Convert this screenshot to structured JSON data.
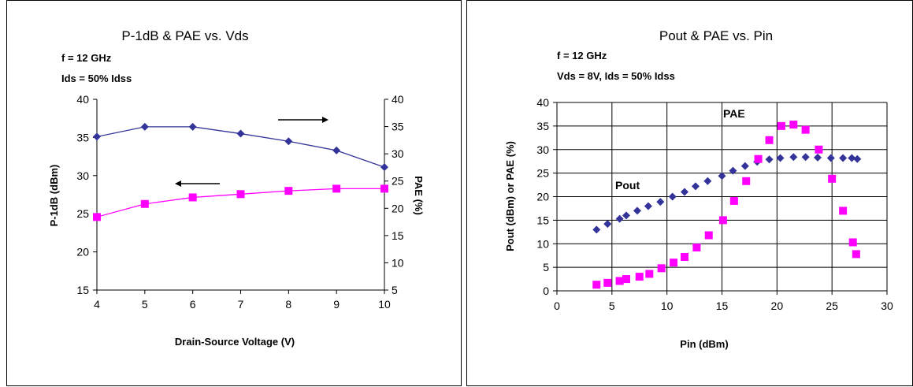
{
  "chart_data": [
    {
      "type": "line",
      "title": "P-1dB & PAE vs. Vds",
      "subtitle_lines": [
        "f = 12 GHz",
        "Ids = 50% Idss"
      ],
      "xlabel": "Drain-Source Voltage (V)",
      "ylabel": "P-1dB (dBm)",
      "y2label": "PAE (%)",
      "xlim": [
        4,
        10
      ],
      "ylim": [
        15,
        40
      ],
      "y2lim": [
        5,
        40
      ],
      "x_ticks": [
        4,
        5,
        6,
        7,
        8,
        9,
        10
      ],
      "y_ticks": [
        15,
        20,
        25,
        30,
        35,
        40
      ],
      "y2_ticks": [
        5,
        10,
        15,
        20,
        25,
        30,
        35,
        40
      ],
      "grid": false,
      "series": [
        {
          "axis": "left",
          "color": "#333399",
          "marker": "diamond",
          "x": [
            4,
            5,
            6,
            7,
            8,
            9,
            10
          ],
          "values": [
            35.1,
            36.4,
            36.4,
            35.5,
            34.5,
            33.3,
            31.1
          ]
        },
        {
          "axis": "right",
          "color": "#ff00ff",
          "marker": "square",
          "x": [
            4,
            5,
            6,
            7,
            8,
            9,
            10
          ],
          "values": [
            18.4,
            20.8,
            22.0,
            22.6,
            23.2,
            23.6,
            23.6
          ]
        }
      ]
    },
    {
      "type": "scatter",
      "title": "Pout & PAE vs. Pin",
      "subtitle_lines": [
        "f = 12 GHz",
        "Vds = 8V, Ids = 50% Idss"
      ],
      "xlabel": "Pin (dBm)",
      "ylabel": "Pout (dBm) or PAE (%)",
      "xlim": [
        0,
        30
      ],
      "ylim": [
        0,
        40
      ],
      "x_ticks": [
        0,
        5,
        10,
        15,
        20,
        25,
        30
      ],
      "y_ticks": [
        0,
        5,
        10,
        15,
        20,
        25,
        30,
        35,
        40
      ],
      "grid": true,
      "annotations": [
        "Pout",
        "PAE"
      ],
      "series": [
        {
          "name": "Pout",
          "color": "#333399",
          "marker": "diamond",
          "x": [
            3.6,
            4.6,
            5.7,
            6.3,
            7.3,
            8.3,
            9.4,
            10.5,
            11.6,
            12.6,
            13.7,
            15.0,
            16.0,
            17.1,
            18.2,
            19.3,
            20.3,
            21.5,
            22.6,
            23.7,
            24.9,
            26.0,
            26.8,
            27.3
          ],
          "values": [
            13.0,
            14.2,
            15.3,
            16.0,
            17.0,
            18.0,
            18.9,
            20.0,
            21.0,
            22.2,
            23.3,
            24.4,
            25.5,
            26.5,
            27.4,
            27.9,
            28.2,
            28.4,
            28.4,
            28.3,
            28.2,
            28.2,
            28.2,
            28.0
          ]
        },
        {
          "name": "PAE",
          "color": "#ff00ff",
          "marker": "square",
          "x": [
            3.6,
            4.6,
            5.7,
            6.3,
            7.5,
            8.4,
            9.5,
            10.6,
            11.6,
            12.7,
            13.8,
            15.1,
            16.1,
            17.2,
            18.3,
            19.3,
            20.4,
            21.5,
            22.6,
            23.8,
            25.0,
            26.0,
            26.9,
            27.2
          ],
          "values": [
            1.3,
            1.7,
            2.1,
            2.5,
            3.0,
            3.6,
            4.8,
            6.0,
            7.2,
            9.2,
            11.8,
            15.0,
            19.1,
            23.3,
            28.0,
            32.0,
            35.0,
            35.3,
            34.2,
            30.0,
            23.8,
            17.0,
            10.3,
            7.8
          ]
        }
      ]
    }
  ]
}
